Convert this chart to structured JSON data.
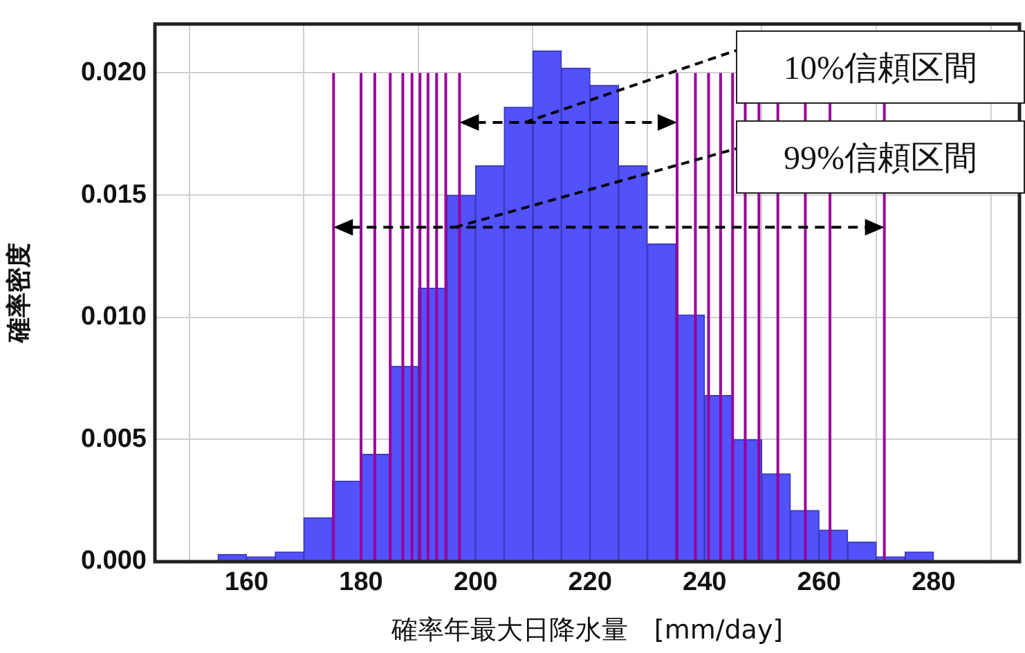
{
  "chart_data": {
    "type": "histogram",
    "xlabel": "確率年最大日降水量　[mm/day]",
    "ylabel": "確率密度",
    "bins": [
      155,
      160,
      165,
      170,
      175,
      180,
      185,
      190,
      195,
      200,
      205,
      210,
      215,
      220,
      225,
      230,
      235,
      240,
      245,
      250,
      255,
      260,
      265,
      270,
      275,
      280
    ],
    "values": [
      0.0003,
      0.0002,
      0.0004,
      0.0018,
      0.0033,
      0.0044,
      0.008,
      0.0112,
      0.015,
      0.0162,
      0.0186,
      0.0209,
      0.0202,
      0.0195,
      0.0162,
      0.013,
      0.0101,
      0.0068,
      0.005,
      0.0036,
      0.0021,
      0.0013,
      0.0008,
      0.0002,
      0.0004
    ],
    "color": "#5252fa",
    "xlim": [
      144,
      295
    ],
    "xticks": [
      160,
      180,
      200,
      220,
      240,
      260,
      280
    ],
    "ylim": [
      0,
      0.022
    ],
    "yticks": [
      {
        "value": 0,
        "label": "0.000"
      },
      {
        "value": 0.005,
        "label": "0.005"
      },
      {
        "value": 0.01,
        "label": "0.010"
      },
      {
        "value": 0.015,
        "label": "0.015"
      },
      {
        "value": 0.02,
        "label": "0.020"
      }
    ],
    "grid": true,
    "legend": false,
    "ref_lines": [
      {
        "axis": "x",
        "value": 175.2,
        "color": "#990099"
      },
      {
        "axis": "x",
        "value": 180,
        "color": "#990099"
      },
      {
        "axis": "x",
        "value": 182.4,
        "color": "#990099"
      },
      {
        "axis": "x",
        "value": 185.1,
        "color": "#990099"
      },
      {
        "axis": "x",
        "value": 187.3,
        "color": "#990099"
      },
      {
        "axis": "x",
        "value": 188.9,
        "color": "#990099"
      },
      {
        "axis": "x",
        "value": 190.3,
        "color": "#990099"
      },
      {
        "axis": "x",
        "value": 191.7,
        "color": "#990099"
      },
      {
        "axis": "x",
        "value": 193.2,
        "color": "#990099"
      },
      {
        "axis": "x",
        "value": 194.8,
        "color": "#990099"
      },
      {
        "axis": "x",
        "value": 197.2,
        "color": "#990099"
      },
      {
        "axis": "x",
        "value": 235.2,
        "color": "#990099"
      },
      {
        "axis": "x",
        "value": 238.4,
        "color": "#990099"
      },
      {
        "axis": "x",
        "value": 240.7,
        "color": "#990099"
      },
      {
        "axis": "x",
        "value": 242.8,
        "color": "#990099"
      },
      {
        "axis": "x",
        "value": 244.9,
        "color": "#990099"
      },
      {
        "axis": "x",
        "value": 247.1,
        "color": "#990099"
      },
      {
        "axis": "x",
        "value": 249.5,
        "color": "#990099"
      },
      {
        "axis": "x",
        "value": 252.8,
        "color": "#990099"
      },
      {
        "axis": "x",
        "value": 257.6,
        "color": "#990099"
      },
      {
        "axis": "x",
        "value": 261.9,
        "color": "#990099"
      },
      {
        "axis": "x",
        "value": 271.4,
        "color": "#990099"
      }
    ],
    "annotations": [
      "10%信頼区間",
      "99%信頼区間"
    ]
  }
}
